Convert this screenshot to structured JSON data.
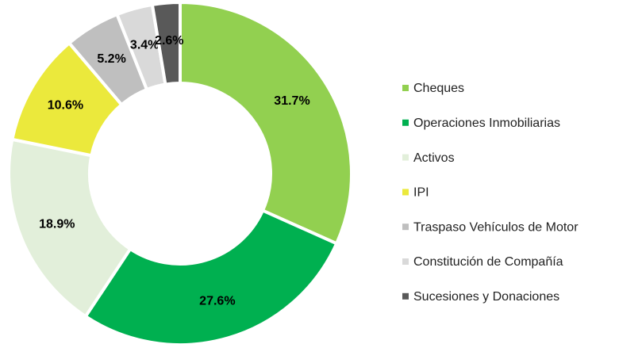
{
  "chart_data": {
    "type": "donut",
    "categories": [
      "Cheques",
      "Operaciones Inmobiliarias",
      "Activos",
      "IPI",
      "Traspaso Vehículos de Motor",
      "Constitución de Compañía",
      "Sucesiones y Donaciones"
    ],
    "values": [
      31.7,
      27.6,
      18.9,
      10.6,
      5.2,
      3.4,
      2.6
    ],
    "value_labels": [
      "31.7%",
      "27.6%",
      "18.9%",
      "10.6%",
      "5.2%",
      "3.4%",
      "2.6%"
    ],
    "colors": [
      "#92d050",
      "#00b050",
      "#e2efda",
      "#ebe93c",
      "#bfbfbf",
      "#d9d9d9",
      "#595959"
    ],
    "legend": "right"
  }
}
